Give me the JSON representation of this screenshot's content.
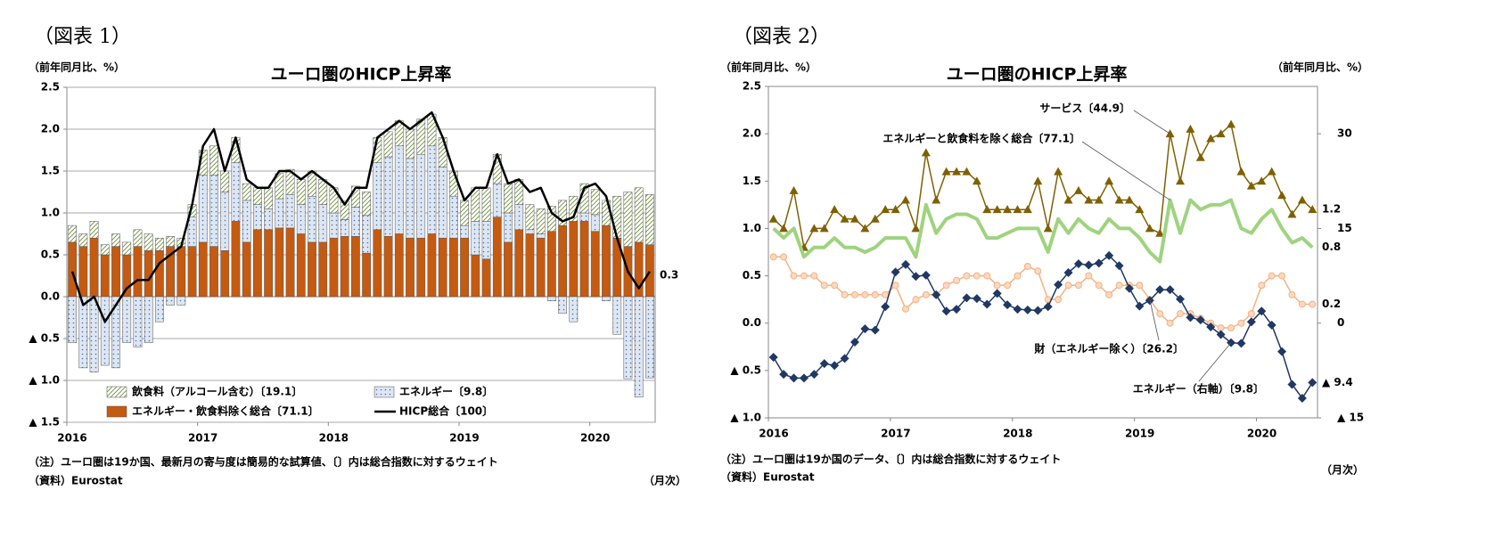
{
  "chart_data": [
    {
      "type": "bar",
      "figure_label": "（図表 1）",
      "title": "ユーロ圏のHICP上昇率",
      "y_label": "（前年同月比、%）",
      "x_label": "（月次）",
      "note": "（注）ユーロ圏は19か国、最新月の寄与度は簡易的な試算値、〔〕内は総合指数に対するウェイト",
      "source": "（資料）Eurostat",
      "categories": [
        "2016",
        null,
        null,
        null,
        null,
        null,
        null,
        null,
        null,
        null,
        null,
        null,
        "2017",
        null,
        null,
        null,
        null,
        null,
        null,
        null,
        null,
        null,
        null,
        null,
        "2018",
        null,
        null,
        null,
        null,
        null,
        null,
        null,
        null,
        null,
        null,
        null,
        "2019",
        null,
        null,
        null,
        null,
        null,
        null,
        null,
        null,
        null,
        null,
        null,
        "2020",
        null,
        null,
        null,
        null,
        null
      ],
      "ylim": [
        -1.5,
        2.5
      ],
      "yticks": [
        2.5,
        {
          "value": 2,
          "label": "2.0"
        },
        1.5,
        {
          "value": 1,
          "label": "1.0"
        },
        0.5,
        {
          "value": 0,
          "label": "0.0"
        },
        {
          "value": -0.5,
          "label": "▲ 0.5"
        },
        {
          "value": -1,
          "label": "▲ 1.0"
        },
        {
          "value": -1.5,
          "label": "▲ 1.5"
        }
      ],
      "grid": true,
      "legend": true,
      "series": [
        {
          "name": "飲食料（アルコール含む）〔19.1〕",
          "type": "bar",
          "pattern": "hatch",
          "color": "#6f8f3c",
          "values": [
            0.2,
            0.15,
            0.2,
            0.12,
            0.15,
            0.15,
            0.2,
            0.2,
            0.15,
            0.12,
            0.1,
            0.15,
            0.3,
            0.35,
            0.25,
            0.3,
            0.2,
            0.2,
            0.25,
            0.3,
            0.3,
            0.3,
            0.3,
            0.3,
            0.3,
            0.22,
            0.25,
            0.28,
            0.3,
            0.3,
            0.3,
            0.35,
            0.42,
            0.38,
            0.35,
            0.3,
            0.3,
            0.4,
            0.4,
            0.35,
            0.35,
            0.3,
            0.3,
            0.3,
            0.3,
            0.3,
            0.3,
            0.35,
            0.3,
            0.3,
            0.5,
            0.65,
            0.65,
            0.6
          ]
        },
        {
          "name": "エネルギー〔9.8〕",
          "type": "bar",
          "pattern": "dots",
          "color": "#4f6fa8",
          "values": [
            -0.55,
            -0.85,
            -0.9,
            -0.82,
            -0.85,
            -0.55,
            -0.6,
            -0.55,
            -0.3,
            -0.1,
            -0.1,
            0.35,
            0.8,
            0.85,
            0.7,
            0.7,
            0.5,
            0.3,
            0.25,
            0.35,
            0.4,
            0.35,
            0.55,
            0.45,
            0.3,
            0.2,
            0.35,
            0.45,
            0.8,
            0.95,
            1.05,
            0.95,
            1.0,
            1.05,
            0.85,
            0.5,
            0.15,
            0.4,
            0.45,
            0.4,
            0.35,
            0.3,
            0.05,
            0.05,
            -0.05,
            -0.2,
            -0.3,
            0.1,
            0.2,
            -0.05,
            -0.45,
            -0.98,
            -1.2,
            -0.97
          ]
        },
        {
          "name": "エネルギー・飲食料除く総合〔71.1〕",
          "type": "bar",
          "pattern": "solid",
          "color": "#c55a11",
          "values": [
            0.65,
            0.6,
            0.7,
            0.5,
            0.6,
            0.5,
            0.6,
            0.55,
            0.55,
            0.6,
            0.6,
            0.6,
            0.65,
            0.6,
            0.55,
            0.9,
            0.65,
            0.8,
            0.8,
            0.82,
            0.82,
            0.75,
            0.65,
            0.65,
            0.7,
            0.72,
            0.72,
            0.52,
            0.8,
            0.72,
            0.75,
            0.7,
            0.7,
            0.75,
            0.7,
            0.7,
            0.7,
            0.5,
            0.45,
            0.95,
            0.65,
            0.8,
            0.75,
            0.7,
            0.78,
            0.85,
            0.9,
            0.9,
            0.78,
            0.85,
            0.7,
            0.6,
            0.65,
            0.62
          ]
        },
        {
          "name": "HICP総合〔100〕",
          "type": "line",
          "color": "#000000",
          "line_width": 2.5,
          "label_last": true,
          "values": [
            0.3,
            -0.1,
            0.0,
            -0.3,
            -0.1,
            0.1,
            0.2,
            0.2,
            0.4,
            0.5,
            0.6,
            1.1,
            1.8,
            2.0,
            1.5,
            1.9,
            1.4,
            1.3,
            1.3,
            1.5,
            1.5,
            1.4,
            1.5,
            1.4,
            1.3,
            1.1,
            1.3,
            1.3,
            1.9,
            2.0,
            2.1,
            2.0,
            2.1,
            2.2,
            1.9,
            1.5,
            1.15,
            1.3,
            1.3,
            1.7,
            1.35,
            1.4,
            1.25,
            1.3,
            1.0,
            0.9,
            0.95,
            1.3,
            1.35,
            1.2,
            0.7,
            0.3,
            0.1,
            0.3
          ]
        }
      ]
    },
    {
      "type": "line",
      "figure_label": "（図表 2）",
      "title": "ユーロ圏のHICP上昇率",
      "y_label": "（前年同月比、%）",
      "y2_label": "（前年同月比、%）",
      "x_label": "（月次）",
      "note": "（注）ユーロ圏は19か国のデータ、〔〕内は総合指数に対するウェイト",
      "source": "（資料）Eurostat",
      "categories": [
        "2016",
        null,
        null,
        null,
        null,
        null,
        null,
        null,
        null,
        null,
        null,
        null,
        "2017",
        null,
        null,
        null,
        null,
        null,
        null,
        null,
        null,
        null,
        null,
        null,
        "2018",
        null,
        null,
        null,
        null,
        null,
        null,
        null,
        null,
        null,
        null,
        null,
        "2019",
        null,
        null,
        null,
        null,
        null,
        null,
        null,
        null,
        null,
        null,
        null,
        "2020",
        null,
        null,
        null,
        null,
        null
      ],
      "ylim": [
        -1,
        2.5
      ],
      "yticks": [
        2.5,
        {
          "value": 2,
          "label": "2.0"
        },
        1.5,
        {
          "value": 1,
          "label": "1.0"
        },
        0.5,
        {
          "value": 0,
          "label": "0.0"
        },
        {
          "value": -0.5,
          "label": "▲ 0.5"
        },
        {
          "value": -1,
          "label": "▲ 1.0"
        }
      ],
      "y2lim": [
        -15,
        37.5
      ],
      "y2ticks": [
        30,
        15,
        0,
        {
          "value": -15,
          "label": "▲ 15"
        }
      ],
      "grid": false,
      "legend": false,
      "series": [
        {
          "name": "サービス〔44.9〕",
          "color": "#7f6000",
          "marker": "triangle",
          "line_width": 1.5,
          "label_last": true,
          "values": [
            1.1,
            1.0,
            1.4,
            0.8,
            1.0,
            1.0,
            1.2,
            1.1,
            1.1,
            1.0,
            1.1,
            1.2,
            1.2,
            1.3,
            1.0,
            1.8,
            1.3,
            1.6,
            1.6,
            1.6,
            1.5,
            1.2,
            1.2,
            1.2,
            1.2,
            1.2,
            1.5,
            1.0,
            1.6,
            1.3,
            1.4,
            1.3,
            1.3,
            1.5,
            1.3,
            1.3,
            1.2,
            1.0,
            0.95,
            2.0,
            1.5,
            2.05,
            1.75,
            1.95,
            2.0,
            2.1,
            1.6,
            1.45,
            1.5,
            1.6,
            1.35,
            1.15,
            1.3,
            1.2
          ]
        },
        {
          "name": "エネルギーと飲食料を除く総合〔77.1〕",
          "color": "#9fd37f",
          "line_width": 4,
          "label_last": true,
          "values": [
            1.0,
            0.9,
            1.0,
            0.7,
            0.8,
            0.8,
            0.9,
            0.8,
            0.8,
            0.75,
            0.8,
            0.9,
            0.9,
            0.9,
            0.7,
            1.25,
            0.95,
            1.1,
            1.15,
            1.15,
            1.1,
            0.9,
            0.9,
            0.95,
            1.0,
            1.0,
            1.0,
            0.75,
            1.1,
            0.95,
            1.1,
            1.0,
            0.95,
            1.1,
            1.0,
            1.0,
            0.9,
            0.75,
            0.65,
            1.3,
            0.95,
            1.3,
            1.2,
            1.25,
            1.25,
            1.3,
            1.0,
            0.95,
            1.1,
            1.2,
            1.0,
            0.85,
            0.9,
            0.8
          ]
        },
        {
          "name": "財（エネルギー除く）〔26.2〕",
          "color": "#f4b183",
          "marker": "circle",
          "line_width": 1.5,
          "label_last": true,
          "values": [
            0.7,
            0.7,
            0.5,
            0.5,
            0.5,
            0.4,
            0.4,
            0.3,
            0.3,
            0.3,
            0.3,
            0.3,
            0.4,
            0.15,
            0.25,
            0.3,
            0.3,
            0.4,
            0.45,
            0.5,
            0.5,
            0.5,
            0.4,
            0.4,
            0.5,
            0.6,
            0.55,
            0.25,
            0.25,
            0.4,
            0.4,
            0.5,
            0.4,
            0.3,
            0.4,
            0.4,
            0.4,
            0.25,
            0.1,
            0.0,
            0.1,
            0.1,
            0.05,
            0.0,
            -0.05,
            -0.05,
            0.0,
            0.1,
            0.4,
            0.5,
            0.5,
            0.3,
            0.2,
            0.2
          ]
        },
        {
          "name": "エネルギー（右軸）〔9.8〕",
          "color": "#1f3864",
          "marker": "diamond",
          "line_width": 1.5,
          "axis": "y2",
          "label_last": true,
          "values": [
            -5.4,
            -8.1,
            -8.7,
            -8.7,
            -8.1,
            -6.4,
            -6.7,
            -5.6,
            -3.0,
            -0.9,
            -1.1,
            2.6,
            8.1,
            9.3,
            7.4,
            7.6,
            4.5,
            1.9,
            2.2,
            4.0,
            3.9,
            3.0,
            4.7,
            2.9,
            2.2,
            2.1,
            2.0,
            2.6,
            6.1,
            8.0,
            9.4,
            9.2,
            9.5,
            10.7,
            9.1,
            5.5,
            2.7,
            3.6,
            5.3,
            5.3,
            3.8,
            0.9,
            0.5,
            -0.6,
            -1.8,
            -3.1,
            -3.2,
            0.2,
            1.9,
            -0.3,
            -4.5,
            -9.7,
            -11.9,
            -9.4
          ],
          "value_labels": [
            null,
            null,
            null,
            null,
            null,
            null,
            null,
            null,
            null,
            null,
            null,
            null,
            null,
            null,
            null,
            null,
            null,
            null,
            null,
            null,
            null,
            null,
            null,
            null,
            null,
            null,
            null,
            null,
            null,
            null,
            null,
            null,
            null,
            null,
            null,
            null,
            null,
            null,
            null,
            null,
            null,
            null,
            null,
            null,
            null,
            null,
            null,
            null,
            null,
            null,
            null,
            null,
            null,
            "▲ 9.4"
          ]
        }
      ]
    }
  ]
}
